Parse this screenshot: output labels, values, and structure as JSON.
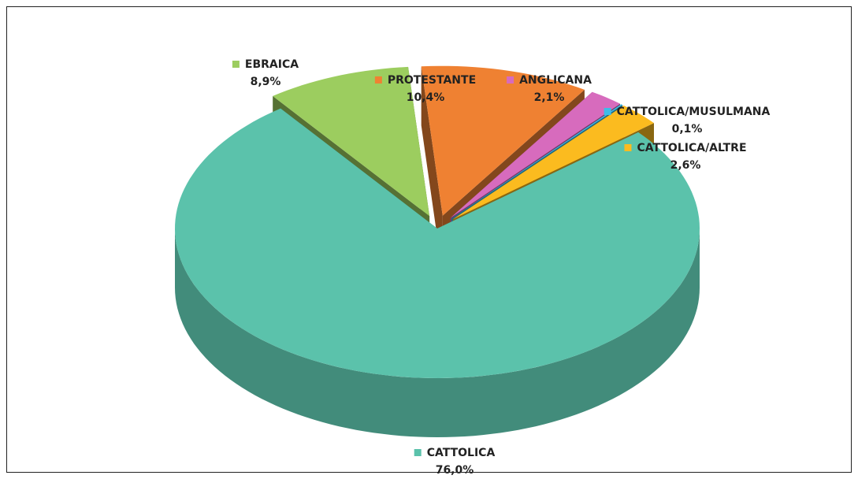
{
  "chart_data": {
    "type": "pie",
    "categories": [
      "CATTOLICA",
      "EBRAICA",
      "PROTESTANTE",
      "ANGLICANA",
      "CATTOLICA/MUSULMANA",
      "CATTOLICA/ALTRE"
    ],
    "values": [
      76.0,
      8.9,
      10.4,
      2.1,
      0.1,
      2.6
    ],
    "value_labels": [
      "76,0%",
      "8,9%",
      "10,4%",
      "2,1%",
      "0,1%",
      "2,6%"
    ],
    "colors": [
      "#5bc2ab",
      "#9ccd5f",
      "#ef8132",
      "#d76bbd",
      "#3dbde9",
      "#fbbb1f"
    ]
  }
}
